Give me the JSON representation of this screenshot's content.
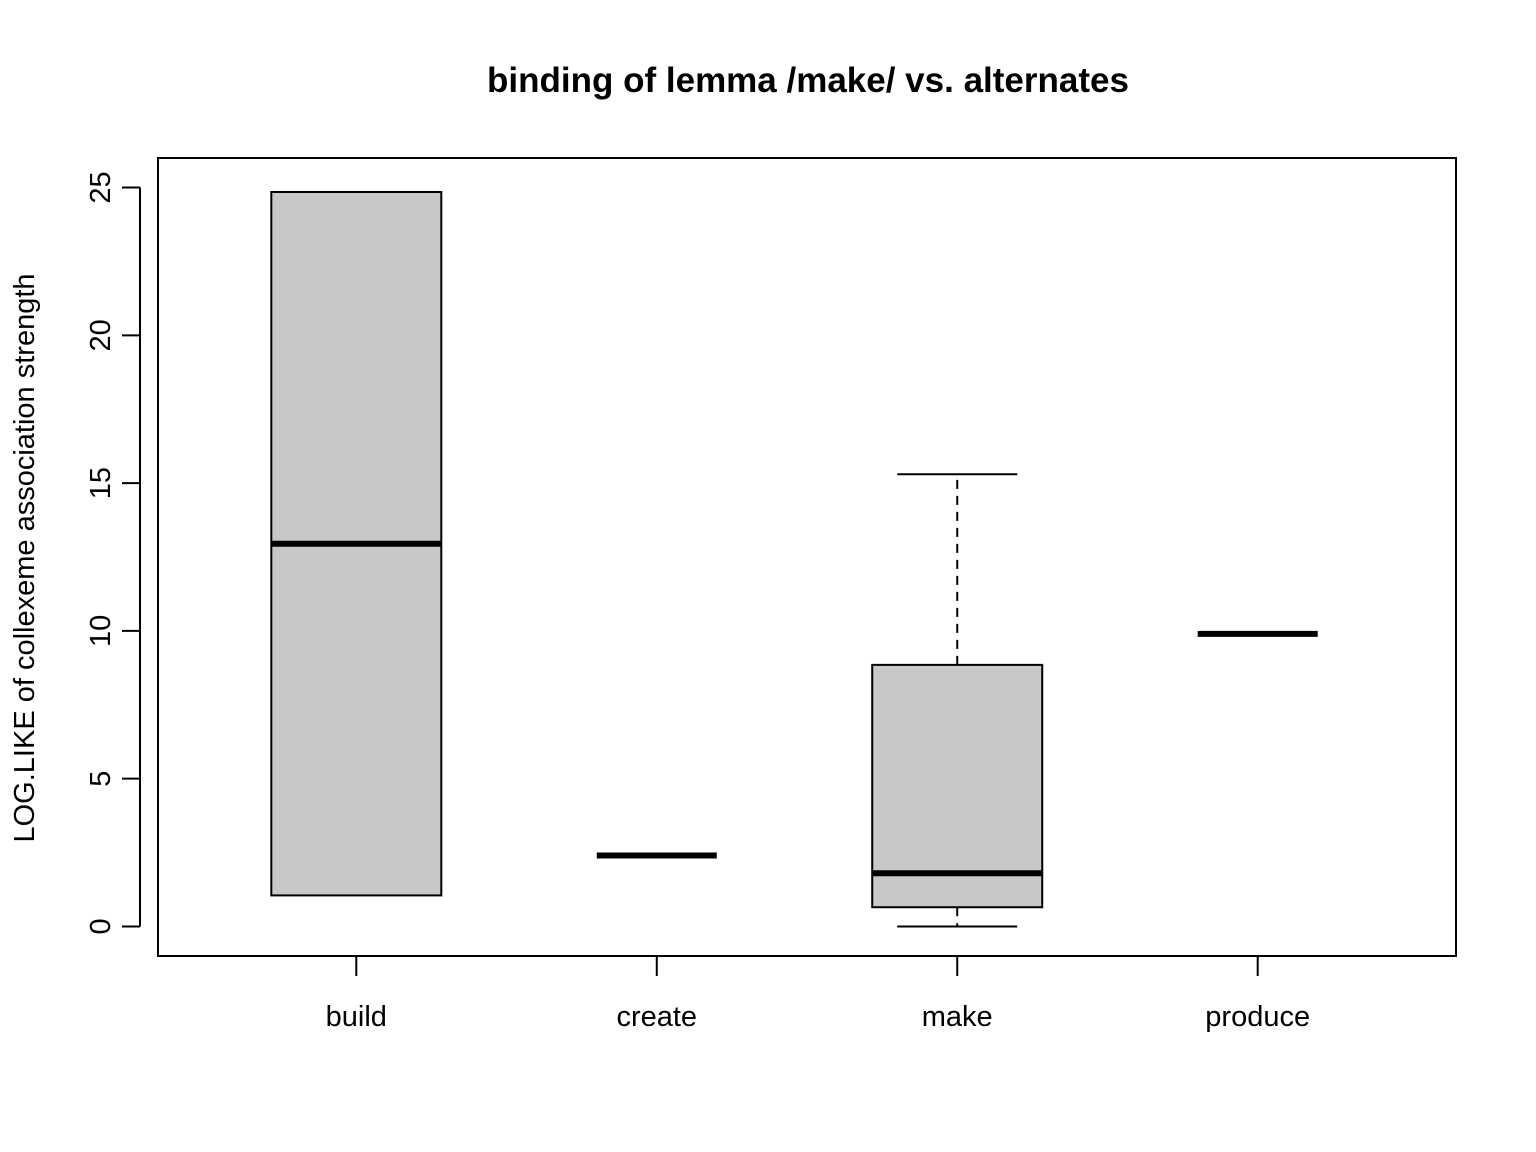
{
  "chart_data": {
    "type": "boxplot",
    "title": "binding of lemma /make/ vs. alternates",
    "xlabel": "",
    "ylabel": "LOG.LIKE of collexeme association strength",
    "ylim": [
      -1,
      26
    ],
    "yticks": [
      0,
      5,
      10,
      15,
      20,
      25
    ],
    "categories": [
      "build",
      "create",
      "make",
      "produce"
    ],
    "boxes": [
      {
        "category": "build",
        "whisker_low": 1.05,
        "q1": 1.05,
        "median": 12.95,
        "q3": 24.85,
        "whisker_high": 24.85
      },
      {
        "category": "create",
        "whisker_low": 2.4,
        "q1": 2.4,
        "median": 2.4,
        "q3": 2.4,
        "whisker_high": 2.4
      },
      {
        "category": "make",
        "whisker_low": 0.0,
        "q1": 0.65,
        "median": 1.8,
        "q3": 8.85,
        "whisker_high": 15.3
      },
      {
        "category": "produce",
        "whisker_low": 9.9,
        "q1": 9.9,
        "median": 9.9,
        "q3": 9.9,
        "whisker_high": 9.9
      }
    ],
    "box_fill": "#c8c8c8",
    "line_color": "#000000",
    "grid": false,
    "legend": "none"
  }
}
